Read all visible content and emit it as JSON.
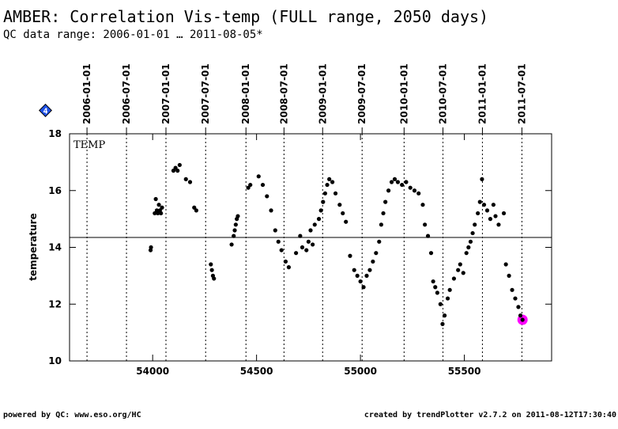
{
  "chart_data": {
    "type": "scatter",
    "title": "AMBER: Correlation Vis-temp (FULL range, 2050 days)",
    "subtitle": "QC data range: 2006-01-01 … 2011-08-05*",
    "y_label": "temperature",
    "panel_label": "TEMP",
    "badge": "4",
    "footer_left": "powered by QC: www.eso.org/HC",
    "footer_right": "created by trendPlotter v2.7.2 on 2011-08-12T17:30:40",
    "xlim": [
      53600,
      55920
    ],
    "xticks": [
      54000,
      54500,
      55000,
      55500
    ],
    "ylim": [
      10,
      18
    ],
    "yticks": [
      10,
      12,
      14,
      16,
      18
    ],
    "reference_line": 14.35,
    "color": "#000000",
    "top_ticks": [
      {
        "value": 53684,
        "label": "2006-01-01"
      },
      {
        "value": 53874,
        "label": "2006-07-01"
      },
      {
        "value": 54064,
        "label": "2007-01-01"
      },
      {
        "value": 54255,
        "label": "2007-07-01"
      },
      {
        "value": 54449,
        "label": "2008-01-01"
      },
      {
        "value": 54632,
        "label": "2008-07-01"
      },
      {
        "value": 54818,
        "label": "2009-01-01"
      },
      {
        "value": 55008,
        "label": "2009-07-01"
      },
      {
        "value": 55210,
        "label": "2010-01-01"
      },
      {
        "value": 55397,
        "label": "2010-07-01"
      },
      {
        "value": 55587,
        "label": "2011-01-01"
      },
      {
        "value": 55777,
        "label": "2011-07-01"
      }
    ],
    "x": [
      53990,
      53992,
      54010,
      54015,
      54020,
      54025,
      54030,
      54035,
      54040,
      54045,
      54100,
      54110,
      54120,
      54130,
      54160,
      54180,
      54200,
      54210,
      54280,
      54285,
      54290,
      54295,
      54380,
      54390,
      54395,
      54400,
      54405,
      54410,
      54460,
      54470,
      54510,
      54530,
      54550,
      54570,
      54590,
      54605,
      54620,
      54640,
      54655,
      54690,
      54710,
      54720,
      54740,
      54750,
      54760,
      54770,
      54780,
      54800,
      54810,
      54820,
      54830,
      54840,
      54850,
      54865,
      54880,
      54900,
      54915,
      54930,
      54950,
      54970,
      54985,
      55000,
      55015,
      55030,
      55045,
      55060,
      55075,
      55090,
      55100,
      55110,
      55120,
      55135,
      55150,
      55165,
      55180,
      55200,
      55220,
      55240,
      55260,
      55280,
      55300,
      55310,
      55325,
      55340,
      55350,
      55360,
      55370,
      55385,
      55395,
      55405,
      55420,
      55430,
      55450,
      55470,
      55480,
      55495,
      55510,
      55520,
      55530,
      55540,
      55550,
      55565,
      55575,
      55585,
      55595,
      55610,
      55625,
      55640,
      55650,
      55665,
      55690,
      55700,
      55715,
      55730,
      55745,
      55760,
      55770,
      55780
    ],
    "y": [
      13.9,
      14.0,
      15.2,
      15.7,
      15.3,
      15.2,
      15.5,
      15.3,
      15.2,
      15.4,
      16.7,
      16.8,
      16.7,
      16.9,
      16.4,
      16.3,
      15.4,
      15.3,
      13.4,
      13.2,
      13.0,
      12.9,
      14.1,
      14.4,
      14.6,
      14.8,
      15.0,
      15.1,
      16.1,
      16.2,
      16.5,
      16.2,
      15.8,
      15.3,
      14.6,
      14.2,
      13.9,
      13.5,
      13.3,
      13.8,
      14.4,
      14.0,
      13.9,
      14.2,
      14.6,
      14.1,
      14.8,
      15.0,
      15.3,
      15.6,
      15.9,
      16.2,
      16.4,
      16.3,
      15.9,
      15.5,
      15.2,
      14.9,
      13.7,
      13.2,
      13.0,
      12.8,
      12.6,
      13.0,
      13.2,
      13.5,
      13.8,
      14.2,
      14.8,
      15.2,
      15.6,
      16.0,
      16.3,
      16.4,
      16.3,
      16.2,
      16.3,
      16.1,
      16.0,
      15.9,
      15.5,
      14.8,
      14.4,
      13.8,
      12.8,
      12.6,
      12.4,
      12.0,
      11.3,
      11.6,
      12.2,
      12.5,
      12.9,
      13.2,
      13.4,
      13.1,
      13.8,
      14.0,
      14.2,
      14.5,
      14.8,
      15.2,
      15.6,
      16.4,
      15.5,
      15.3,
      15.0,
      15.5,
      15.1,
      14.8,
      15.2,
      13.4,
      13.0,
      12.5,
      12.2,
      11.9,
      11.6,
      11.45
    ],
    "highlight": {
      "x": 55780,
      "y": 11.45,
      "color": "#ff00ff"
    }
  }
}
